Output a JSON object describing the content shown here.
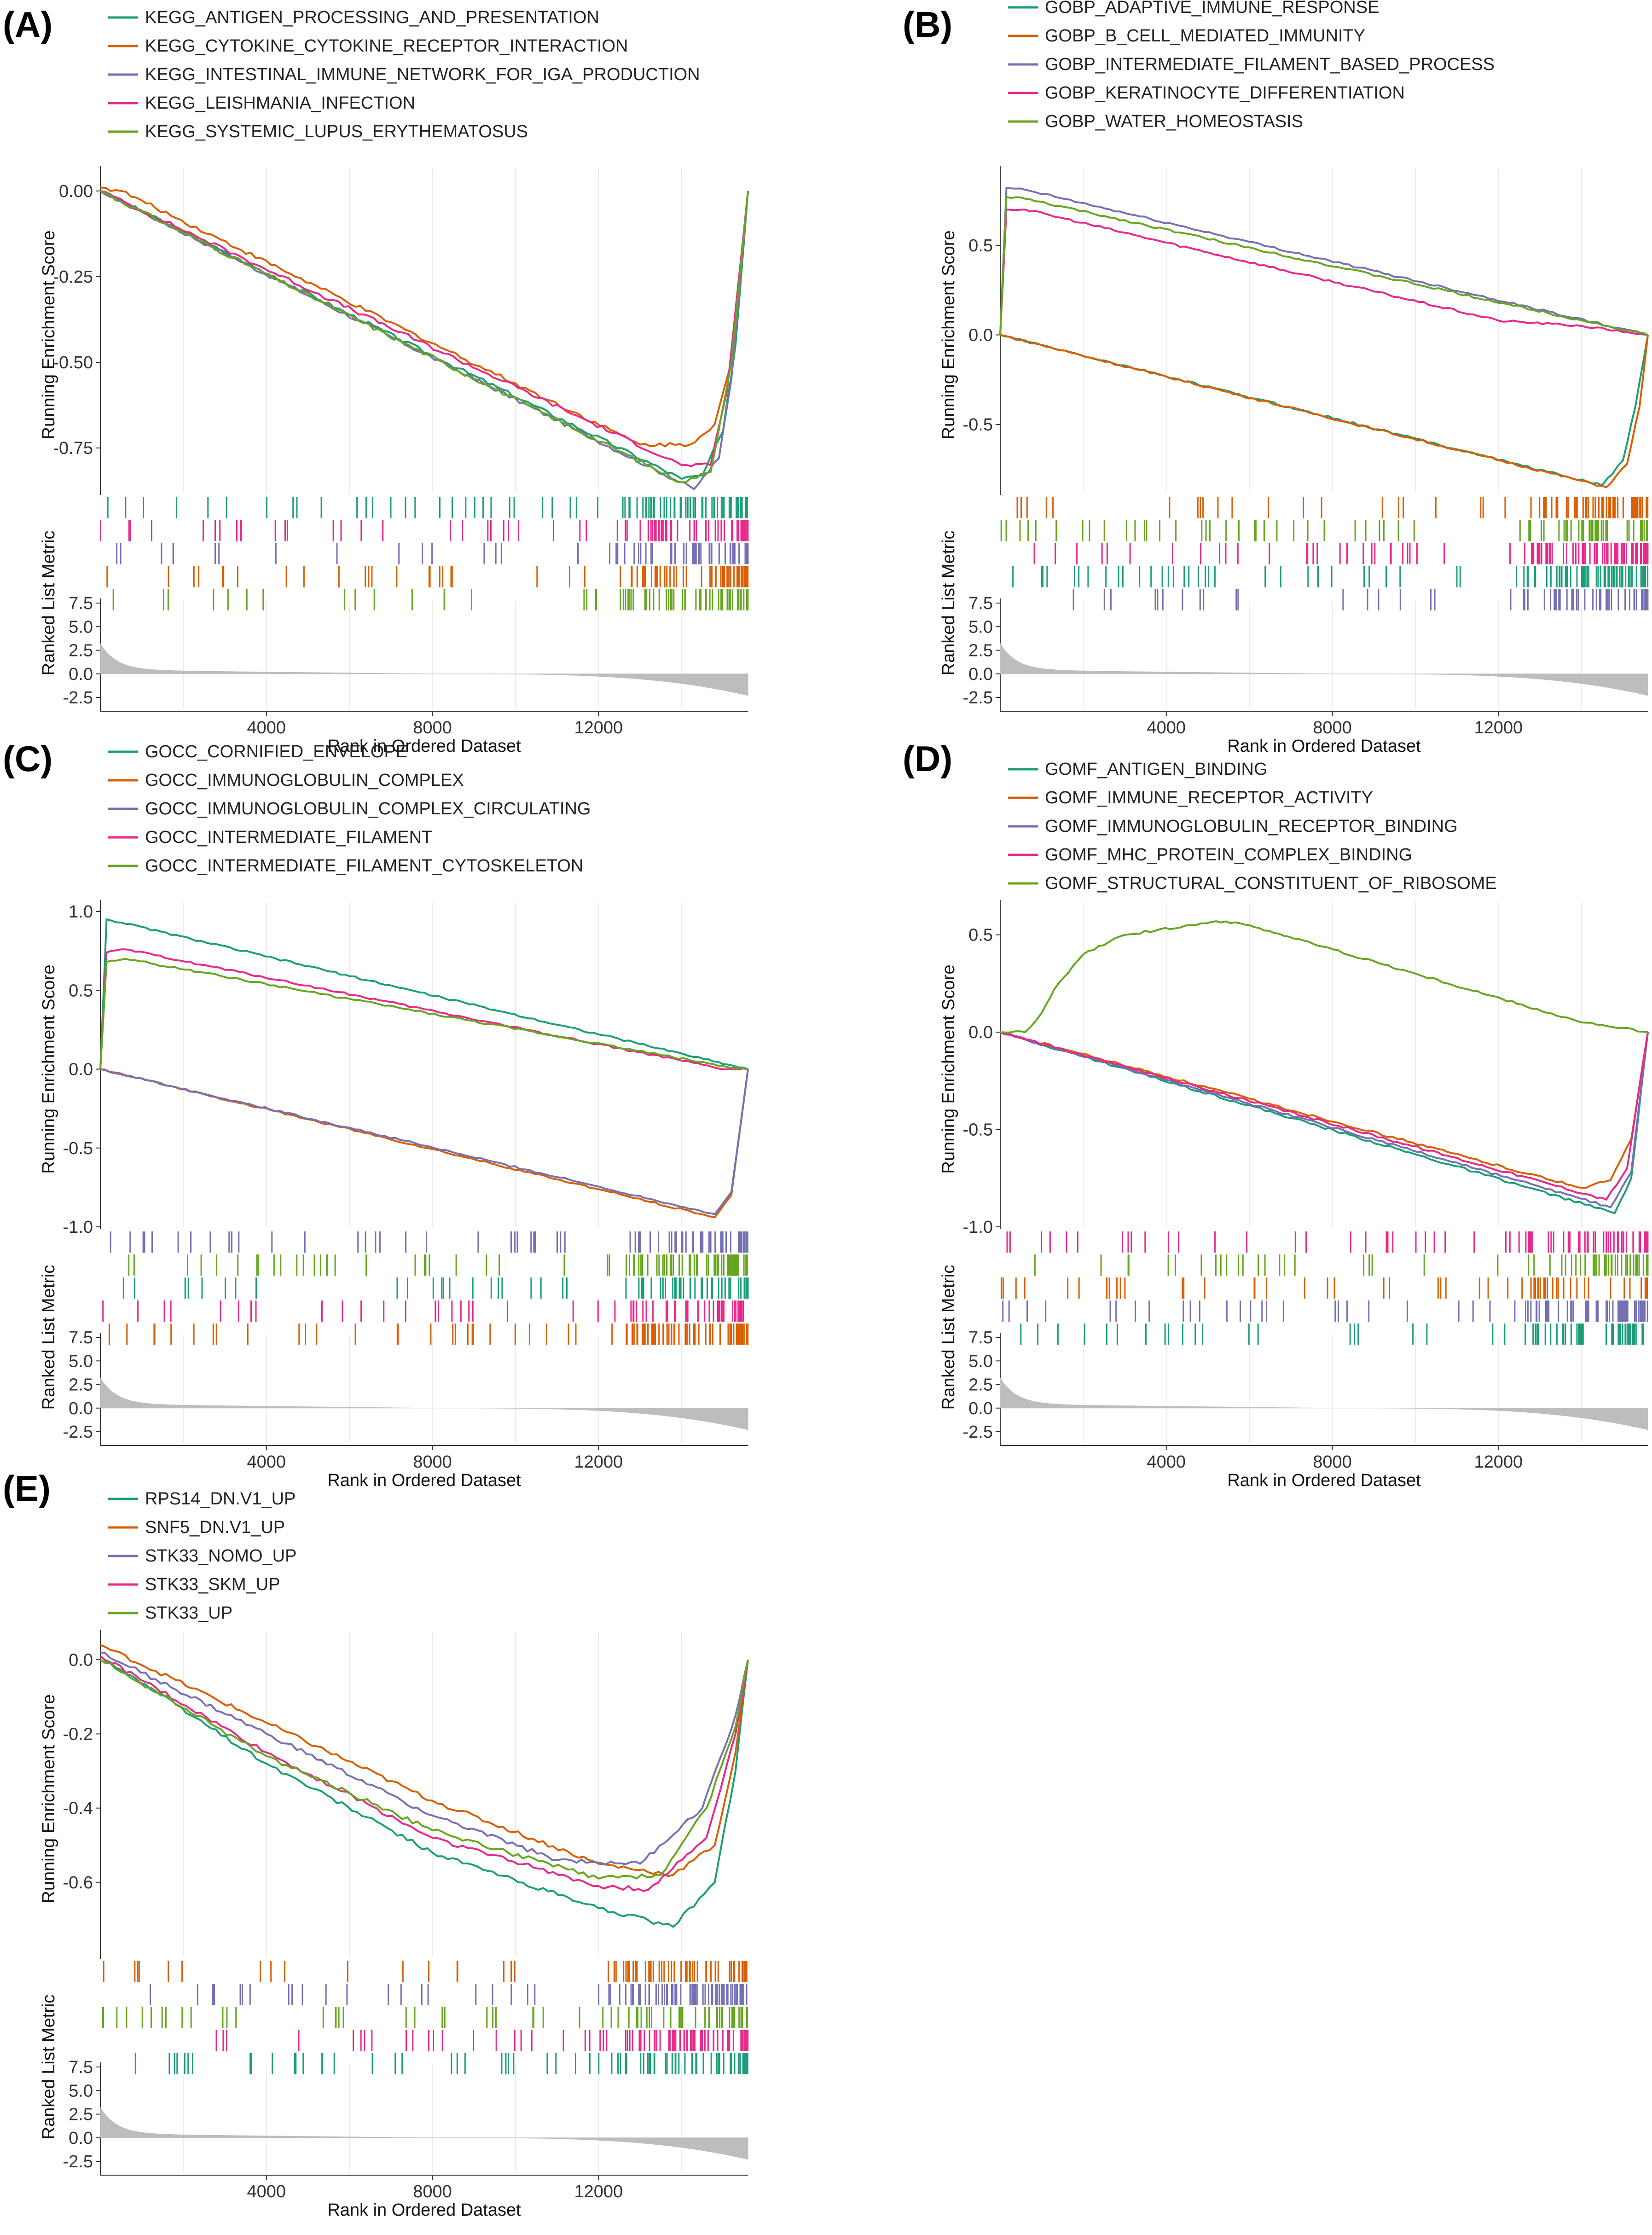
{
  "figure": {
    "x_axis_title": "Rank in Ordered Dataset",
    "y_axis_title_top": "Running Enrichment Score",
    "y_axis_title_bottom": "Ranked List Metric",
    "metric_ticks": [
      "7.5",
      "5.0",
      "2.5",
      "0.0",
      "-2.5"
    ]
  },
  "chart_data": [
    {
      "panel": "(A)",
      "type": "line",
      "title": "",
      "xlabel": "Rank in Ordered Dataset",
      "ylabel": "Running Enrichment Score",
      "x_ticks": [
        "4000",
        "8000",
        "12000"
      ],
      "y_ticks": [
        "0.00",
        "-0.25",
        "-0.50",
        "-0.75"
      ],
      "ylim": [
        -0.88,
        0.04
      ],
      "series": [
        {
          "name": "KEGG_ANTIGEN_PROCESSING_AND_PRESENTATION",
          "color": "#1b9e77",
          "points": [
            [
              0,
              0.0
            ],
            [
              14000,
              -0.84
            ],
            [
              14500,
              -0.83
            ],
            [
              15000,
              -0.7
            ],
            [
              15300,
              -0.45
            ],
            [
              15600,
              0.0
            ]
          ]
        },
        {
          "name": "KEGG_CYTOKINE_CYTOKINE_RECEPTOR_INTERACTION",
          "color": "#d95f02",
          "points": [
            [
              0,
              0.01
            ],
            [
              500,
              0.0
            ],
            [
              13000,
              -0.74
            ],
            [
              14200,
              -0.74
            ],
            [
              14800,
              -0.68
            ],
            [
              15200,
              -0.5
            ],
            [
              15600,
              0.0
            ]
          ]
        },
        {
          "name": "KEGG_INTESTINAL_IMMUNE_NETWORK_FOR_IGA_PRODUCTION",
          "color": "#7570b3",
          "points": [
            [
              0,
              0.0
            ],
            [
              14300,
              -0.87
            ],
            [
              14900,
              -0.78
            ],
            [
              15200,
              -0.55
            ],
            [
              15600,
              0.0
            ]
          ]
        },
        {
          "name": "KEGG_LEISHMANIA_INFECTION",
          "color": "#e7298a",
          "points": [
            [
              0,
              0.0
            ],
            [
              14000,
              -0.8
            ],
            [
              14700,
              -0.8
            ],
            [
              15100,
              -0.58
            ],
            [
              15600,
              0.0
            ]
          ]
        },
        {
          "name": "KEGG_SYSTEMIC_LUPUS_ERYTHEMATOSUS",
          "color": "#66a61e",
          "points": [
            [
              0,
              0.0
            ],
            [
              14000,
              -0.85
            ],
            [
              14700,
              -0.82
            ],
            [
              15200,
              -0.5
            ],
            [
              15600,
              0.0
            ]
          ]
        }
      ]
    },
    {
      "panel": "(B)",
      "type": "line",
      "title": "",
      "xlabel": "Rank in Ordered Dataset",
      "ylabel": "Running Enrichment Score",
      "x_ticks": [
        "4000",
        "8000",
        "12000"
      ],
      "y_ticks": [
        "0.5",
        "0.0",
        "-0.5"
      ],
      "ylim": [
        -0.88,
        0.88
      ],
      "series": [
        {
          "name": "GOBP_ADAPTIVE_IMMUNE_RESPONSE",
          "color": "#1b9e77",
          "points": [
            [
              0,
              0.0
            ],
            [
              14500,
              -0.84
            ],
            [
              15000,
              -0.7
            ],
            [
              15300,
              -0.4
            ],
            [
              15600,
              0.0
            ]
          ]
        },
        {
          "name": "GOBP_B_CELL_MEDIATED_IMMUNITY",
          "color": "#d95f02",
          "points": [
            [
              0,
              0.0
            ],
            [
              14600,
              -0.85
            ],
            [
              15100,
              -0.72
            ],
            [
              15400,
              -0.4
            ],
            [
              15600,
              0.0
            ]
          ]
        },
        {
          "name": "GOBP_INTERMEDIATE_FILAMENT_BASED_PROCESS",
          "color": "#7570b3",
          "points": [
            [
              0,
              0.0
            ],
            [
              150,
              0.82
            ],
            [
              600,
              0.81
            ],
            [
              15600,
              0.0
            ]
          ]
        },
        {
          "name": "GOBP_KERATINOCYTE_DIFFERENTIATION",
          "color": "#e7298a",
          "points": [
            [
              0,
              0.0
            ],
            [
              150,
              0.7
            ],
            [
              600,
              0.7
            ],
            [
              12000,
              0.08
            ],
            [
              14000,
              0.05
            ],
            [
              15600,
              0.0
            ]
          ]
        },
        {
          "name": "GOBP_WATER_HOMEOSTASIS",
          "color": "#66a61e",
          "points": [
            [
              0,
              0.0
            ],
            [
              150,
              0.77
            ],
            [
              600,
              0.76
            ],
            [
              15600,
              0.0
            ]
          ]
        }
      ]
    },
    {
      "panel": "(C)",
      "type": "line",
      "title": "",
      "xlabel": "Rank in Ordered Dataset",
      "ylabel": "Running Enrichment Score",
      "x_ticks": [
        "4000",
        "8000",
        "12000"
      ],
      "y_ticks": [
        "1.0",
        "0.5",
        "0.0",
        "-0.5",
        "-1.0"
      ],
      "ylim": [
        -1.0,
        1.0
      ],
      "series": [
        {
          "name": "GOCC_CORNIFIED_ENVELOPE",
          "color": "#1b9e77",
          "points": [
            [
              0,
              0.0
            ],
            [
              150,
              0.95
            ],
            [
              500,
              0.93
            ],
            [
              15600,
              0.0
            ]
          ]
        },
        {
          "name": "GOCC_IMMUNOGLOBULIN_COMPLEX",
          "color": "#d95f02",
          "points": [
            [
              0,
              0.0
            ],
            [
              14800,
              -0.94
            ],
            [
              15200,
              -0.8
            ],
            [
              15600,
              0.0
            ]
          ]
        },
        {
          "name": "GOCC_IMMUNOGLOBULIN_COMPLEX_CIRCULATING",
          "color": "#7570b3",
          "points": [
            [
              0,
              0.0
            ],
            [
              14800,
              -0.92
            ],
            [
              15200,
              -0.78
            ],
            [
              15600,
              0.0
            ]
          ]
        },
        {
          "name": "GOCC_INTERMEDIATE_FILAMENT",
          "color": "#e7298a",
          "points": [
            [
              0,
              0.0
            ],
            [
              150,
              0.74
            ],
            [
              600,
              0.76
            ],
            [
              15000,
              0.0
            ],
            [
              15600,
              0.0
            ]
          ]
        },
        {
          "name": "GOCC_INTERMEDIATE_FILAMENT_CYTOSKELETON",
          "color": "#66a61e",
          "points": [
            [
              0,
              0.0
            ],
            [
              150,
              0.68
            ],
            [
              600,
              0.7
            ],
            [
              15000,
              0.02
            ],
            [
              15600,
              0.0
            ]
          ]
        }
      ]
    },
    {
      "panel": "(D)",
      "type": "line",
      "title": "",
      "xlabel": "Rank in Ordered Dataset",
      "ylabel": "Running Enrichment Score",
      "x_ticks": [
        "4000",
        "8000",
        "12000"
      ],
      "y_ticks": [
        "0.5",
        "0.0",
        "-0.5",
        "-1.0"
      ],
      "ylim": [
        -1.0,
        0.62
      ],
      "series": [
        {
          "name": "GOMF_ANTIGEN_BINDING",
          "color": "#1b9e77",
          "points": [
            [
              0,
              0.0
            ],
            [
              14800,
              -0.93
            ],
            [
              15200,
              -0.75
            ],
            [
              15600,
              0.0
            ]
          ]
        },
        {
          "name": "GOMF_IMMUNE_RECEPTOR_ACTIVITY",
          "color": "#d95f02",
          "points": [
            [
              0,
              0.0
            ],
            [
              14000,
              -0.8
            ],
            [
              14700,
              -0.76
            ],
            [
              15200,
              -0.55
            ],
            [
              15600,
              0.0
            ]
          ]
        },
        {
          "name": "GOMF_IMMUNOGLOBULIN_RECEPTOR_BINDING",
          "color": "#7570b3",
          "points": [
            [
              0,
              0.0
            ],
            [
              14700,
              -0.9
            ],
            [
              15200,
              -0.72
            ],
            [
              15600,
              0.0
            ]
          ]
        },
        {
          "name": "GOMF_MHC_PROTEIN_COMPLEX_BINDING",
          "color": "#e7298a",
          "points": [
            [
              0,
              0.0
            ],
            [
              14600,
              -0.86
            ],
            [
              15100,
              -0.7
            ],
            [
              15600,
              0.0
            ]
          ]
        },
        {
          "name": "GOMF_STRUCTURAL_CONSTITUENT_OF_RIBOSOME",
          "color": "#66a61e",
          "points": [
            [
              0,
              0.0
            ],
            [
              600,
              0.0
            ],
            [
              1000,
              0.1
            ],
            [
              1300,
              0.22
            ],
            [
              2000,
              0.4
            ],
            [
              3000,
              0.5
            ],
            [
              5200,
              0.57
            ],
            [
              6000,
              0.55
            ],
            [
              14000,
              0.05
            ],
            [
              15600,
              0.0
            ]
          ]
        }
      ]
    },
    {
      "panel": "(E)",
      "type": "line",
      "title": "",
      "xlabel": "Rank in Ordered Dataset",
      "ylabel": "Running Enrichment Score",
      "x_ticks": [
        "4000",
        "8000",
        "12000"
      ],
      "y_ticks": [
        "0.0",
        "-0.2",
        "-0.4",
        "-0.6"
      ],
      "ylim": [
        -0.8,
        0.05
      ],
      "series": [
        {
          "name": "RPS14_DN.V1_UP",
          "color": "#1b9e77",
          "points": [
            [
              0,
              0.01
            ],
            [
              4000,
              -0.28
            ],
            [
              8000,
              -0.52
            ],
            [
              12000,
              -0.67
            ],
            [
              13800,
              -0.72
            ],
            [
              14800,
              -0.6
            ],
            [
              15300,
              -0.3
            ],
            [
              15600,
              0.0
            ]
          ]
        },
        {
          "name": "SNF5_DN.V1_UP",
          "color": "#d95f02",
          "points": [
            [
              0,
              0.04
            ],
            [
              4000,
              -0.17
            ],
            [
              8000,
              -0.38
            ],
            [
              12000,
              -0.55
            ],
            [
              13800,
              -0.58
            ],
            [
              14800,
              -0.5
            ],
            [
              15300,
              -0.25
            ],
            [
              15600,
              0.0
            ]
          ]
        },
        {
          "name": "STK33_NOMO_UP",
          "color": "#7570b3",
          "points": [
            [
              0,
              0.02
            ],
            [
              4000,
              -0.2
            ],
            [
              8000,
              -0.42
            ],
            [
              11000,
              -0.54
            ],
            [
              13000,
              -0.55
            ],
            [
              14500,
              -0.4
            ],
            [
              15300,
              -0.15
            ],
            [
              15600,
              0.0
            ]
          ]
        },
        {
          "name": "STK33_SKM_UP",
          "color": "#e7298a",
          "points": [
            [
              0,
              0.01
            ],
            [
              4000,
              -0.25
            ],
            [
              8000,
              -0.48
            ],
            [
              12000,
              -0.61
            ],
            [
              13200,
              -0.62
            ],
            [
              14600,
              -0.48
            ],
            [
              15300,
              -0.2
            ],
            [
              15600,
              0.0
            ]
          ]
        },
        {
          "name": "STK33_UP",
          "color": "#66a61e",
          "points": [
            [
              0,
              0.0
            ],
            [
              4000,
              -0.26
            ],
            [
              8000,
              -0.46
            ],
            [
              12000,
              -0.59
            ],
            [
              13500,
              -0.58
            ],
            [
              14600,
              -0.4
            ],
            [
              15300,
              -0.18
            ],
            [
              15600,
              0.0
            ]
          ]
        }
      ]
    }
  ]
}
